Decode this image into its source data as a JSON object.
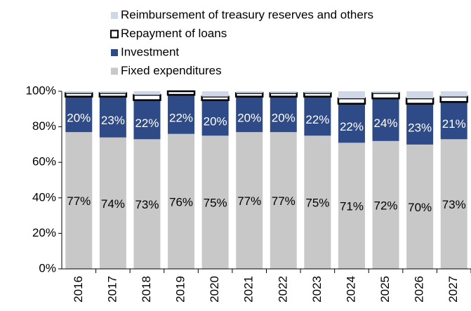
{
  "chart_data": {
    "type": "stacked_bar",
    "categories": [
      "2016",
      "2017",
      "2018",
      "2019",
      "2020",
      "2021",
      "2022",
      "2023",
      "2024",
      "2025",
      "2026",
      "2027"
    ],
    "series": [
      {
        "name": "Fixed expenditures",
        "color": "#c8c8c8",
        "values": [
          77,
          74,
          73,
          76,
          75,
          77,
          77,
          75,
          71,
          72,
          70,
          73
        ],
        "value_labels": [
          "77%",
          "74%",
          "73%",
          "76%",
          "75%",
          "77%",
          "77%",
          "75%",
          "71%",
          "72%",
          "70%",
          "73%"
        ]
      },
      {
        "name": "Investment",
        "color": "#2e4a87",
        "values": [
          20,
          23,
          22,
          22,
          20,
          20,
          20,
          22,
          22,
          24,
          23,
          21
        ],
        "value_labels": [
          "20%",
          "23%",
          "22%",
          "22%",
          "20%",
          "20%",
          "20%",
          "22%",
          "22%",
          "24%",
          "23%",
          "21%"
        ]
      },
      {
        "name": "Repayment of loans",
        "color": "#ffffff",
        "values": [
          2,
          2,
          3,
          2,
          2,
          2,
          2,
          2,
          3,
          3,
          3,
          3
        ]
      },
      {
        "name": "Reimbursement of treasury reserves and others",
        "color": "#d0d8e8",
        "values": [
          1,
          1,
          2,
          0,
          3,
          1,
          1,
          1,
          4,
          1,
          4,
          3
        ]
      }
    ],
    "ylim": [
      0,
      100
    ],
    "yticks": [
      {
        "value": 0,
        "label": "0%"
      },
      {
        "value": 20,
        "label": "20%"
      },
      {
        "value": 40,
        "label": "40%"
      },
      {
        "value": 60,
        "label": "60%"
      },
      {
        "value": 80,
        "label": "80%"
      },
      {
        "value": 100,
        "label": "100%"
      }
    ],
    "legend": "top"
  }
}
